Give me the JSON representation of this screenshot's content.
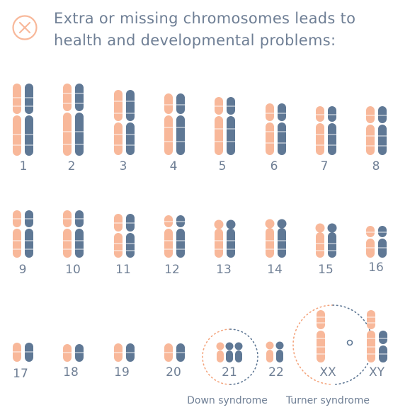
{
  "header": {
    "icon": "x-circle-icon",
    "title_line1": "Extra or missing chromosomes leads to",
    "title_line2": "health and developmental problems:"
  },
  "colors": {
    "maternal": "#f8b89a",
    "paternal": "#5f7895",
    "text": "#6f7f95",
    "icon": "#f8b89a",
    "circle_left": "#f4a57e",
    "circle_right": "#5f7895"
  },
  "chromosomes": [
    {
      "label": "1"
    },
    {
      "label": "2"
    },
    {
      "label": "3"
    },
    {
      "label": "4"
    },
    {
      "label": "5"
    },
    {
      "label": "6"
    },
    {
      "label": "7"
    },
    {
      "label": "8"
    },
    {
      "label": "9"
    },
    {
      "label": "10"
    },
    {
      "label": "11"
    },
    {
      "label": "12"
    },
    {
      "label": "13"
    },
    {
      "label": "14"
    },
    {
      "label": "15"
    },
    {
      "label": "16"
    },
    {
      "label": "17"
    },
    {
      "label": "18"
    },
    {
      "label": "19"
    },
    {
      "label": "20"
    },
    {
      "label": "21",
      "note": "trisomy"
    },
    {
      "label": "22"
    },
    {
      "label": "XX",
      "note": "missing X"
    },
    {
      "label": "XY"
    }
  ],
  "annotations": {
    "down": "Down syndrome",
    "turner": "Turner syndrome"
  }
}
